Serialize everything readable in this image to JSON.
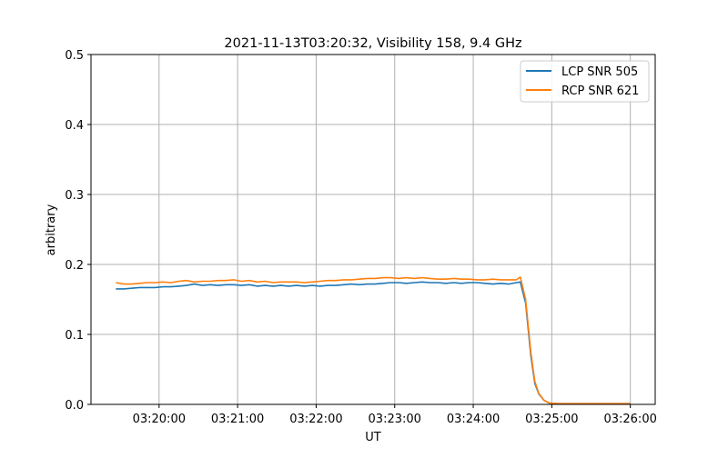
{
  "chart_data": {
    "type": "line",
    "title": "2021-11-13T03:20:32, Visibility 158, 9.4 GHz",
    "xlabel": "UT",
    "ylabel": "arbitrary",
    "xlim": [
      "03:19:08",
      "03:26:19"
    ],
    "ylim": [
      0,
      0.5
    ],
    "grid": true,
    "legend_position": "top-right",
    "xticks": [
      "03:20:00",
      "03:21:00",
      "03:22:00",
      "03:23:00",
      "03:24:00",
      "03:25:00",
      "03:26:00"
    ],
    "yticks": [
      "0.0",
      "0.1",
      "0.2",
      "0.3",
      "0.4",
      "0.5"
    ],
    "x": [
      "03:19:27",
      "03:19:33",
      "03:19:39",
      "03:19:45",
      "03:19:51",
      "03:19:57",
      "03:20:03",
      "03:20:09",
      "03:20:15",
      "03:20:21",
      "03:20:27",
      "03:20:33",
      "03:20:39",
      "03:20:45",
      "03:20:51",
      "03:20:57",
      "03:21:03",
      "03:21:09",
      "03:21:15",
      "03:21:21",
      "03:21:27",
      "03:21:33",
      "03:21:39",
      "03:21:45",
      "03:21:51",
      "03:21:57",
      "03:22:03",
      "03:22:09",
      "03:22:15",
      "03:22:21",
      "03:22:27",
      "03:22:33",
      "03:22:39",
      "03:22:45",
      "03:22:51",
      "03:22:57",
      "03:23:03",
      "03:23:09",
      "03:23:15",
      "03:23:21",
      "03:23:27",
      "03:23:33",
      "03:23:39",
      "03:23:45",
      "03:23:51",
      "03:23:57",
      "03:24:03",
      "03:24:09",
      "03:24:15",
      "03:24:21",
      "03:24:27",
      "03:24:33",
      "03:24:36",
      "03:24:40",
      "03:24:44",
      "03:24:47",
      "03:24:50",
      "03:24:54",
      "03:24:58",
      "03:25:05",
      "03:25:30",
      "03:26:00"
    ],
    "series": [
      {
        "name": "LCP SNR 505",
        "color": "#1f77b4",
        "values": [
          0.165,
          0.165,
          0.166,
          0.167,
          0.167,
          0.167,
          0.168,
          0.168,
          0.169,
          0.17,
          0.172,
          0.17,
          0.171,
          0.17,
          0.171,
          0.171,
          0.17,
          0.171,
          0.169,
          0.17,
          0.169,
          0.17,
          0.169,
          0.17,
          0.169,
          0.17,
          0.169,
          0.17,
          0.17,
          0.171,
          0.172,
          0.171,
          0.172,
          0.172,
          0.173,
          0.174,
          0.174,
          0.173,
          0.174,
          0.175,
          0.174,
          0.174,
          0.173,
          0.174,
          0.173,
          0.174,
          0.174,
          0.173,
          0.172,
          0.173,
          0.172,
          0.174,
          0.175,
          0.145,
          0.07,
          0.03,
          0.015,
          0.006,
          0.002,
          0.001,
          0.001,
          0.001
        ]
      },
      {
        "name": "RCP SNR 621",
        "color": "#ff7f0e",
        "values": [
          0.174,
          0.172,
          0.172,
          0.173,
          0.174,
          0.174,
          0.175,
          0.174,
          0.176,
          0.177,
          0.175,
          0.176,
          0.176,
          0.177,
          0.177,
          0.178,
          0.176,
          0.177,
          0.175,
          0.176,
          0.174,
          0.175,
          0.175,
          0.175,
          0.174,
          0.175,
          0.176,
          0.177,
          0.177,
          0.178,
          0.178,
          0.179,
          0.18,
          0.18,
          0.181,
          0.181,
          0.18,
          0.181,
          0.18,
          0.181,
          0.18,
          0.179,
          0.179,
          0.18,
          0.179,
          0.179,
          0.178,
          0.178,
          0.179,
          0.178,
          0.178,
          0.178,
          0.182,
          0.15,
          0.075,
          0.033,
          0.016,
          0.006,
          0.002,
          0.001,
          0.001,
          0.001
        ]
      }
    ]
  }
}
